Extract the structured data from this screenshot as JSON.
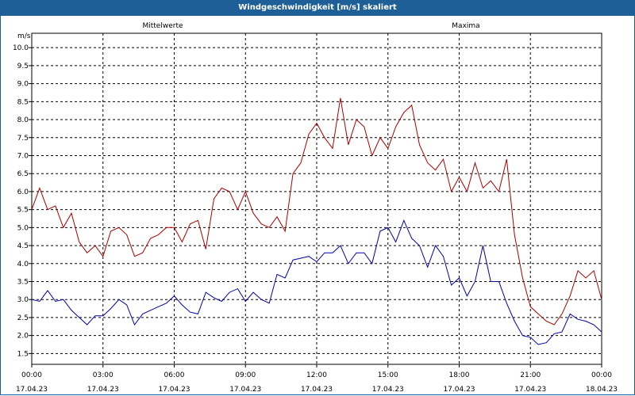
{
  "window": {
    "title": "Windgeschwindigkeit [m/s] skaliert"
  },
  "colors": {
    "mean": "#0000aa",
    "max": "#aa0000",
    "title_bg": "#1f5f97"
  },
  "chart_data": {
    "type": "line",
    "title": "Windgeschwindigkeit [m/s] skaliert",
    "ylabel": "m/s",
    "xlabel": "",
    "ylim": [
      1.2,
      10.4
    ],
    "yticks": [
      "1.5",
      "2.0",
      "2.5",
      "3.0",
      "3.5",
      "4.0",
      "4.5",
      "5.0",
      "5.5",
      "6.0",
      "6.5",
      "7.0",
      "7.5",
      "8.0",
      "8.5",
      "9.0",
      "9.5",
      "10.0"
    ],
    "grid": true,
    "xlim": [
      0,
      24
    ],
    "xtick_times": [
      "00:00",
      "03:00",
      "06:00",
      "09:00",
      "12:00",
      "15:00",
      "18:00",
      "21:00",
      "00:00"
    ],
    "xtick_dates": [
      "17.04.23",
      "17.04.23",
      "17.04.23",
      "17.04.23",
      "17.04.23",
      "17.04.23",
      "17.04.23",
      "17.04.23",
      "18.04.23"
    ],
    "series": [
      {
        "name": "Mittelwerte",
        "color": "#0000aa",
        "x": [
          0,
          0.33,
          0.67,
          1,
          1.33,
          1.67,
          2,
          2.33,
          2.67,
          3,
          3.33,
          3.67,
          4,
          4.33,
          4.67,
          5,
          5.33,
          5.67,
          6,
          6.33,
          6.67,
          7,
          7.33,
          7.67,
          8,
          8.33,
          8.67,
          9,
          9.33,
          9.67,
          10,
          10.33,
          10.67,
          11,
          11.33,
          11.67,
          12,
          12.33,
          12.67,
          13,
          13.33,
          13.67,
          14,
          14.33,
          14.67,
          15,
          15.33,
          15.67,
          16,
          16.33,
          16.67,
          17,
          17.33,
          17.67,
          18,
          18.33,
          18.67,
          19,
          19.33,
          19.67,
          20,
          20.33,
          20.67,
          21,
          21.33,
          21.67,
          22,
          22.33,
          22.67,
          23,
          23.33,
          23.67,
          24
        ],
        "values": [
          3.0,
          2.95,
          3.25,
          2.95,
          3.0,
          2.7,
          2.5,
          2.3,
          2.55,
          2.55,
          2.75,
          3.0,
          2.85,
          2.3,
          2.6,
          2.7,
          2.8,
          2.9,
          3.1,
          2.85,
          2.65,
          2.6,
          3.2,
          3.05,
          2.95,
          3.2,
          3.3,
          2.95,
          3.2,
          3.0,
          2.9,
          3.7,
          3.6,
          4.1,
          4.15,
          4.2,
          4.05,
          4.3,
          4.3,
          4.5,
          4.0,
          4.3,
          4.3,
          4.0,
          4.9,
          5.0,
          4.6,
          5.2,
          4.7,
          4.5,
          3.9,
          4.5,
          4.2,
          3.4,
          3.6,
          3.1,
          3.5,
          4.5,
          3.5,
          3.5,
          2.9,
          2.4,
          2.0,
          1.95,
          1.75,
          1.8,
          2.05,
          2.1,
          2.6,
          2.45,
          2.4,
          2.3,
          2.1
        ]
      },
      {
        "name": "Maxima",
        "color": "#aa0000",
        "x": [
          0,
          0.33,
          0.67,
          1,
          1.33,
          1.67,
          2,
          2.33,
          2.67,
          3,
          3.33,
          3.67,
          4,
          4.33,
          4.67,
          5,
          5.33,
          5.67,
          6,
          6.33,
          6.67,
          7,
          7.33,
          7.67,
          8,
          8.33,
          8.67,
          9,
          9.33,
          9.67,
          10,
          10.33,
          10.67,
          11,
          11.33,
          11.67,
          12,
          12.33,
          12.67,
          13,
          13.33,
          13.67,
          14,
          14.33,
          14.67,
          15,
          15.33,
          15.67,
          16,
          16.33,
          16.67,
          17,
          17.33,
          17.67,
          18,
          18.33,
          18.67,
          19,
          19.33,
          19.67,
          20,
          20.33,
          20.67,
          21,
          21.33,
          21.67,
          22,
          22.33,
          22.67,
          23,
          23.33,
          23.67,
          24
        ],
        "values": [
          5.5,
          6.1,
          5.5,
          5.6,
          5.0,
          5.4,
          4.6,
          4.3,
          4.5,
          4.2,
          4.9,
          5.0,
          4.8,
          4.2,
          4.3,
          4.7,
          4.8,
          5.0,
          5.0,
          4.6,
          5.1,
          5.2,
          4.4,
          5.8,
          6.1,
          6.0,
          5.5,
          6.0,
          5.4,
          5.1,
          5.0,
          5.3,
          4.9,
          6.5,
          6.8,
          7.6,
          7.9,
          7.5,
          7.2,
          8.6,
          7.3,
          8.0,
          7.8,
          7.0,
          7.5,
          7.2,
          7.8,
          8.2,
          8.4,
          7.3,
          6.8,
          6.6,
          6.9,
          6.0,
          6.4,
          6.0,
          6.8,
          6.1,
          6.3,
          6.0,
          6.9,
          4.8,
          3.6,
          2.8,
          2.6,
          2.4,
          2.3,
          2.6,
          3.1,
          3.8,
          3.6,
          3.8,
          3.0
        ]
      }
    ]
  }
}
